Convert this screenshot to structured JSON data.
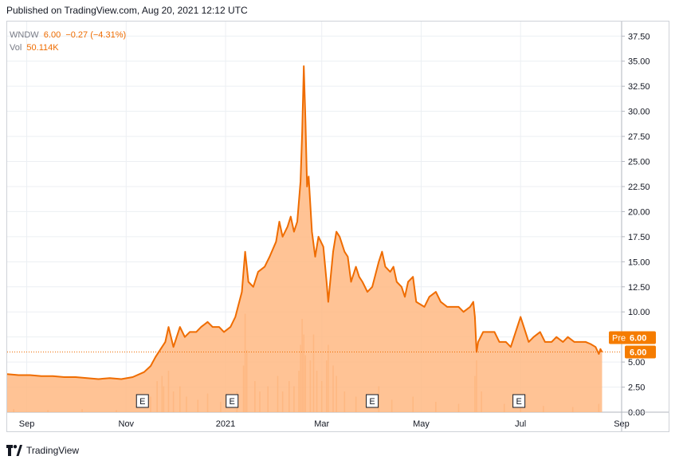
{
  "header": {
    "published": "Published on TradingView.com, Aug 20, 2021 12:12 UTC"
  },
  "legend": {
    "symbol": "WNDW",
    "price": "6.00",
    "change": "−0.27 (−4.31%)",
    "vol_label": "Vol",
    "vol_value": "50.114K"
  },
  "footer": {
    "brand": "TradingView"
  },
  "colors": {
    "line": "#ef6c00",
    "fill": "#ffb982",
    "volume": "#f29c55",
    "grid": "#eceff3",
    "axis_text": "#131722",
    "badge": "#f57c00"
  },
  "badges": {
    "pre_label": "Pre",
    "pre_value": "6.00",
    "last_value": "6.00"
  },
  "earnings": {
    "label": "E",
    "dates": [
      "2020-11-11",
      "2021-01-05",
      "2021-04-01",
      "2021-06-30"
    ]
  },
  "chart_data": {
    "type": "area",
    "title": "",
    "ylim": [
      0,
      38
    ],
    "y_ticks": [
      "0.00",
      "2.50",
      "5.00",
      "7.50",
      "10.00",
      "12.50",
      "15.00",
      "17.50",
      "20.00",
      "22.50",
      "25.00",
      "27.50",
      "30.00",
      "32.50",
      "35.00",
      "37.50"
    ],
    "x_ticks": [
      {
        "label": "Sep",
        "date": "2020-09-01"
      },
      {
        "label": "Nov",
        "date": "2020-11-01"
      },
      {
        "label": "2021",
        "date": "2021-01-01"
      },
      {
        "label": "Mar",
        "date": "2021-03-01"
      },
      {
        "label": "May",
        "date": "2021-05-01"
      },
      {
        "label": "Jul",
        "date": "2021-07-01"
      },
      {
        "label": "Sep",
        "date": "2021-09-01"
      }
    ],
    "x_range": [
      "2020-08-20",
      "2021-09-01"
    ],
    "grid": true,
    "series": [
      {
        "name": "WNDW",
        "points": [
          [
            "2020-08-20",
            3.8
          ],
          [
            "2020-08-27",
            3.7
          ],
          [
            "2020-09-03",
            3.7
          ],
          [
            "2020-09-10",
            3.6
          ],
          [
            "2020-09-17",
            3.6
          ],
          [
            "2020-09-24",
            3.5
          ],
          [
            "2020-10-01",
            3.5
          ],
          [
            "2020-10-08",
            3.4
          ],
          [
            "2020-10-15",
            3.3
          ],
          [
            "2020-10-22",
            3.4
          ],
          [
            "2020-10-29",
            3.3
          ],
          [
            "2020-11-05",
            3.5
          ],
          [
            "2020-11-12",
            4.0
          ],
          [
            "2020-11-16",
            4.6
          ],
          [
            "2020-11-19",
            5.5
          ],
          [
            "2020-11-23",
            6.5
          ],
          [
            "2020-11-25",
            7.0
          ],
          [
            "2020-11-27",
            8.5
          ],
          [
            "2020-11-30",
            6.5
          ],
          [
            "2020-12-02",
            7.5
          ],
          [
            "2020-12-04",
            8.5
          ],
          [
            "2020-12-07",
            7.5
          ],
          [
            "2020-12-10",
            8.0
          ],
          [
            "2020-12-14",
            8.0
          ],
          [
            "2020-12-17",
            8.5
          ],
          [
            "2020-12-21",
            9.0
          ],
          [
            "2020-12-24",
            8.5
          ],
          [
            "2020-12-28",
            8.5
          ],
          [
            "2020-12-31",
            8.0
          ],
          [
            "2021-01-04",
            8.5
          ],
          [
            "2021-01-07",
            9.5
          ],
          [
            "2021-01-11",
            12.0
          ],
          [
            "2021-01-13",
            16.0
          ],
          [
            "2021-01-15",
            13.0
          ],
          [
            "2021-01-18",
            12.5
          ],
          [
            "2021-01-21",
            14.0
          ],
          [
            "2021-01-25",
            14.5
          ],
          [
            "2021-01-28",
            15.5
          ],
          [
            "2021-02-01",
            17.0
          ],
          [
            "2021-02-03",
            19.0
          ],
          [
            "2021-02-05",
            17.5
          ],
          [
            "2021-02-08",
            18.5
          ],
          [
            "2021-02-10",
            19.5
          ],
          [
            "2021-02-12",
            18.0
          ],
          [
            "2021-02-14",
            19.0
          ],
          [
            "2021-02-16",
            23.0
          ],
          [
            "2021-02-17",
            28.0
          ],
          [
            "2021-02-18",
            34.5
          ],
          [
            "2021-02-19",
            29.0
          ],
          [
            "2021-02-20",
            22.5
          ],
          [
            "2021-02-21",
            23.5
          ],
          [
            "2021-02-23",
            18.0
          ],
          [
            "2021-02-25",
            15.5
          ],
          [
            "2021-02-27",
            17.5
          ],
          [
            "2021-03-02",
            16.5
          ],
          [
            "2021-03-04",
            13.0
          ],
          [
            "2021-03-05",
            11.0
          ],
          [
            "2021-03-08",
            16.0
          ],
          [
            "2021-03-10",
            18.0
          ],
          [
            "2021-03-12",
            17.5
          ],
          [
            "2021-03-15",
            16.0
          ],
          [
            "2021-03-17",
            15.5
          ],
          [
            "2021-03-19",
            13.0
          ],
          [
            "2021-03-22",
            14.5
          ],
          [
            "2021-03-24",
            13.5
          ],
          [
            "2021-03-26",
            13.0
          ],
          [
            "2021-03-29",
            12.0
          ],
          [
            "2021-04-01",
            12.5
          ],
          [
            "2021-04-05",
            15.0
          ],
          [
            "2021-04-07",
            16.0
          ],
          [
            "2021-04-09",
            14.5
          ],
          [
            "2021-04-12",
            14.0
          ],
          [
            "2021-04-14",
            14.5
          ],
          [
            "2021-04-16",
            13.0
          ],
          [
            "2021-04-19",
            12.5
          ],
          [
            "2021-04-21",
            11.5
          ],
          [
            "2021-04-23",
            13.0
          ],
          [
            "2021-04-26",
            13.5
          ],
          [
            "2021-04-28",
            11.0
          ],
          [
            "2021-05-03",
            10.5
          ],
          [
            "2021-05-06",
            11.5
          ],
          [
            "2021-05-10",
            12.0
          ],
          [
            "2021-05-13",
            11.0
          ],
          [
            "2021-05-17",
            10.5
          ],
          [
            "2021-05-20",
            10.5
          ],
          [
            "2021-05-24",
            10.5
          ],
          [
            "2021-05-27",
            10.0
          ],
          [
            "2021-05-31",
            10.5
          ],
          [
            "2021-06-02",
            11.0
          ],
          [
            "2021-06-03",
            9.5
          ],
          [
            "2021-06-04",
            6.0
          ],
          [
            "2021-06-05",
            7.0
          ],
          [
            "2021-06-08",
            8.0
          ],
          [
            "2021-06-11",
            8.0
          ],
          [
            "2021-06-15",
            8.0
          ],
          [
            "2021-06-18",
            7.0
          ],
          [
            "2021-06-22",
            7.0
          ],
          [
            "2021-06-25",
            6.5
          ],
          [
            "2021-06-29",
            8.5
          ],
          [
            "2021-07-01",
            9.5
          ],
          [
            "2021-07-03",
            8.5
          ],
          [
            "2021-07-06",
            7.0
          ],
          [
            "2021-07-09",
            7.5
          ],
          [
            "2021-07-13",
            8.0
          ],
          [
            "2021-07-16",
            7.0
          ],
          [
            "2021-07-20",
            7.0
          ],
          [
            "2021-07-23",
            7.5
          ],
          [
            "2021-07-27",
            7.0
          ],
          [
            "2021-07-30",
            7.5
          ],
          [
            "2021-08-03",
            7.0
          ],
          [
            "2021-08-06",
            7.0
          ],
          [
            "2021-08-10",
            7.0
          ],
          [
            "2021-08-13",
            6.8
          ],
          [
            "2021-08-16",
            6.5
          ],
          [
            "2021-08-18",
            5.8
          ],
          [
            "2021-08-19",
            6.3
          ],
          [
            "2021-08-20",
            6.0
          ]
        ]
      },
      {
        "name": "Vol",
        "points": [
          [
            "2020-08-24",
            0.3
          ],
          [
            "2020-09-14",
            0.2
          ],
          [
            "2020-10-05",
            0.3
          ],
          [
            "2020-10-26",
            0.2
          ],
          [
            "2020-11-16",
            1.5
          ],
          [
            "2020-11-20",
            3.0
          ],
          [
            "2020-11-23",
            3.5
          ],
          [
            "2020-11-24",
            2.5
          ],
          [
            "2020-11-27",
            4.0
          ],
          [
            "2020-11-30",
            2.0
          ],
          [
            "2020-12-04",
            2.5
          ],
          [
            "2020-12-08",
            1.5
          ],
          [
            "2020-12-15",
            1.2
          ],
          [
            "2020-12-21",
            1.8
          ],
          [
            "2020-12-29",
            1.0
          ],
          [
            "2021-01-08",
            2.0
          ],
          [
            "2021-01-12",
            4.5
          ],
          [
            "2021-01-13",
            9.5
          ],
          [
            "2021-01-14",
            6.0
          ],
          [
            "2021-01-19",
            3.0
          ],
          [
            "2021-01-22",
            2.0
          ],
          [
            "2021-01-27",
            2.5
          ],
          [
            "2021-02-02",
            3.5
          ],
          [
            "2021-02-05",
            2.0
          ],
          [
            "2021-02-09",
            3.0
          ],
          [
            "2021-02-12",
            2.5
          ],
          [
            "2021-02-15",
            4.0
          ],
          [
            "2021-02-16",
            6.5
          ],
          [
            "2021-02-17",
            9.0
          ],
          [
            "2021-02-18",
            7.5
          ],
          [
            "2021-02-19",
            5.5
          ],
          [
            "2021-02-22",
            5.0
          ],
          [
            "2021-02-24",
            7.5
          ],
          [
            "2021-02-26",
            4.0
          ],
          [
            "2021-03-01",
            3.0
          ],
          [
            "2021-03-04",
            5.0
          ],
          [
            "2021-03-05",
            6.5
          ],
          [
            "2021-03-08",
            4.5
          ],
          [
            "2021-03-10",
            3.5
          ],
          [
            "2021-03-15",
            2.0
          ],
          [
            "2021-03-22",
            1.5
          ],
          [
            "2021-04-05",
            2.5
          ],
          [
            "2021-04-13",
            1.2
          ],
          [
            "2021-04-26",
            1.5
          ],
          [
            "2021-05-10",
            1.0
          ],
          [
            "2021-05-24",
            0.8
          ],
          [
            "2021-06-03",
            3.5
          ],
          [
            "2021-06-04",
            5.0
          ],
          [
            "2021-06-07",
            2.0
          ],
          [
            "2021-06-21",
            0.8
          ],
          [
            "2021-07-01",
            1.2
          ],
          [
            "2021-07-15",
            0.6
          ],
          [
            "2021-08-02",
            0.5
          ],
          [
            "2021-08-18",
            0.8
          ]
        ]
      }
    ]
  }
}
